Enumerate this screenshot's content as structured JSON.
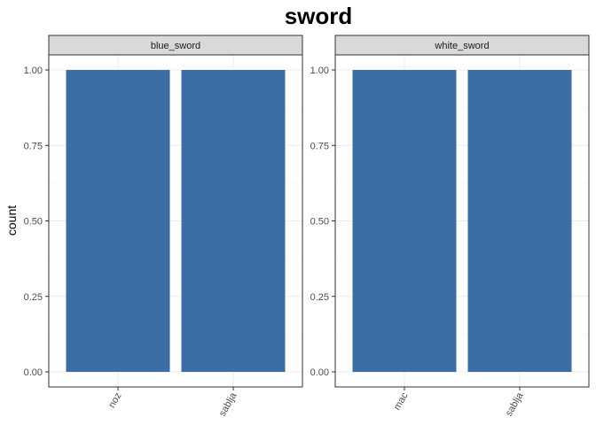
{
  "chart_data": {
    "type": "bar",
    "title": "sword",
    "ylabel": "count",
    "xlabel": "",
    "ylim": [
      0,
      1
    ],
    "y_ticks": [
      "0.00",
      "0.25",
      "0.50",
      "0.75",
      "1.00"
    ],
    "y_tick_values": [
      0,
      0.25,
      0.5,
      0.75,
      1
    ],
    "bar_color": "#3A6EA5",
    "strip_fill": "#D9D9D9",
    "grid": true,
    "panels": [
      {
        "facet": "blue_sword",
        "categories": [
          "noz",
          "sablja"
        ],
        "values": [
          1,
          1
        ]
      },
      {
        "facet": "white_sword",
        "categories": [
          "mac",
          "sablja"
        ],
        "values": [
          1,
          1
        ]
      }
    ]
  }
}
